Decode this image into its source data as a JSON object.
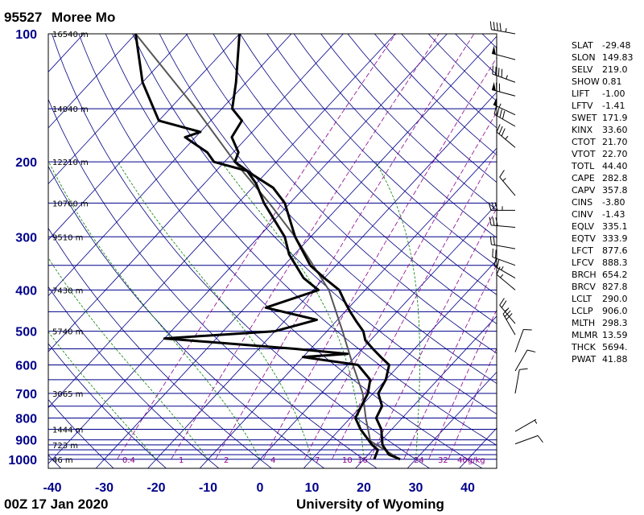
{
  "header": {
    "station_id": "95527",
    "station_name": "Moree Mo"
  },
  "footer": {
    "time": "00Z 17 Jan 2020",
    "credit": "University of Wyoming"
  },
  "colors": {
    "axis_label": "#00008b",
    "isotherm": "#00008b",
    "dry_adiabat": "#000080",
    "moist_adiabat": "#008000",
    "mixing_ratio": "#8b008b",
    "profile": "#000000",
    "parcel": "#555555"
  },
  "chart_data": {
    "type": "skew-t",
    "x_axis": {
      "label": "",
      "ticks": [
        -40,
        -30,
        -20,
        -10,
        0,
        10,
        20,
        30,
        40
      ],
      "range": [
        -40,
        45
      ]
    },
    "y_axis": {
      "label": "",
      "ticks": [
        100,
        200,
        300,
        400,
        500,
        600,
        700,
        800,
        900,
        1000
      ],
      "scale": "log",
      "range": [
        1050,
        100
      ]
    },
    "heights": [
      {
        "p": 100,
        "label": "16540 m"
      },
      {
        "p": 150,
        "label": "14040 m"
      },
      {
        "p": 200,
        "label": "12210 m"
      },
      {
        "p": 250,
        "label": "10760 m"
      },
      {
        "p": 300,
        "label": "9510 m"
      },
      {
        "p": 400,
        "label": "7430 m"
      },
      {
        "p": 500,
        "label": "5740 m"
      },
      {
        "p": 700,
        "label": "3065 m"
      },
      {
        "p": 850,
        "label": "1444 m"
      },
      {
        "p": 925,
        "label": "723 m"
      },
      {
        "p": 1000,
        "label": "46 m"
      }
    ],
    "mixing_ratio_labels": [
      "0.4",
      "1",
      "2",
      "4",
      "7",
      "10",
      "16",
      "24",
      "32",
      "40g/kg"
    ],
    "temperature": [
      {
        "p": 1000,
        "t": 27
      },
      {
        "p": 975,
        "t": 24
      },
      {
        "p": 925,
        "t": 21
      },
      {
        "p": 850,
        "t": 18
      },
      {
        "p": 800,
        "t": 15
      },
      {
        "p": 750,
        "t": 14
      },
      {
        "p": 700,
        "t": 11
      },
      {
        "p": 650,
        "t": 10
      },
      {
        "p": 600,
        "t": 8
      },
      {
        "p": 575,
        "t": 5
      },
      {
        "p": 550,
        "t": 2
      },
      {
        "p": 525,
        "t": -1
      },
      {
        "p": 500,
        "t": -3
      },
      {
        "p": 475,
        "t": -6
      },
      {
        "p": 450,
        "t": -9
      },
      {
        "p": 425,
        "t": -12
      },
      {
        "p": 400,
        "t": -15
      },
      {
        "p": 375,
        "t": -20
      },
      {
        "p": 350,
        "t": -25
      },
      {
        "p": 300,
        "t": -33
      },
      {
        "p": 250,
        "t": -41
      },
      {
        "p": 230,
        "t": -46
      },
      {
        "p": 215,
        "t": -52
      },
      {
        "p": 200,
        "t": -58
      },
      {
        "p": 190,
        "t": -59
      },
      {
        "p": 175,
        "t": -63
      },
      {
        "p": 160,
        "t": -64
      },
      {
        "p": 150,
        "t": -68
      },
      {
        "p": 130,
        "t": -72
      },
      {
        "p": 100,
        "t": -80
      }
    ],
    "dewpoint": [
      {
        "p": 1000,
        "t": 22
      },
      {
        "p": 950,
        "t": 21
      },
      {
        "p": 925,
        "t": 19
      },
      {
        "p": 850,
        "t": 14
      },
      {
        "p": 800,
        "t": 11
      },
      {
        "p": 750,
        "t": 10
      },
      {
        "p": 700,
        "t": 9
      },
      {
        "p": 650,
        "t": 7
      },
      {
        "p": 600,
        "t": 2
      },
      {
        "p": 575,
        "t": -10
      },
      {
        "p": 565,
        "t": -2
      },
      {
        "p": 550,
        "t": -13
      },
      {
        "p": 520,
        "t": -40
      },
      {
        "p": 500,
        "t": -20
      },
      {
        "p": 470,
        "t": -14
      },
      {
        "p": 440,
        "t": -26
      },
      {
        "p": 400,
        "t": -19
      },
      {
        "p": 375,
        "t": -24
      },
      {
        "p": 330,
        "t": -31
      },
      {
        "p": 300,
        "t": -35
      },
      {
        "p": 250,
        "t": -45
      },
      {
        "p": 225,
        "t": -50
      },
      {
        "p": 210,
        "t": -54
      },
      {
        "p": 200,
        "t": -62
      },
      {
        "p": 190,
        "t": -65
      },
      {
        "p": 175,
        "t": -72
      },
      {
        "p": 170,
        "t": -70
      },
      {
        "p": 160,
        "t": -80
      },
      {
        "p": 130,
        "t": -90
      },
      {
        "p": 100,
        "t": -100
      }
    ],
    "parcel": [
      {
        "p": 1000,
        "t": 27
      },
      {
        "p": 906,
        "t": 18
      },
      {
        "p": 800,
        "t": 13
      },
      {
        "p": 700,
        "t": 8
      },
      {
        "p": 600,
        "t": 1
      },
      {
        "p": 500,
        "t": -7
      },
      {
        "p": 400,
        "t": -17
      },
      {
        "p": 300,
        "t": -33
      },
      {
        "p": 250,
        "t": -44
      },
      {
        "p": 200,
        "t": -58
      },
      {
        "p": 150,
        "t": -75
      },
      {
        "p": 100,
        "t": -100
      }
    ],
    "winds": [
      {
        "p": 100,
        "dir": 280,
        "spd": 45
      },
      {
        "p": 115,
        "dir": 285,
        "spd": 60
      },
      {
        "p": 130,
        "dir": 290,
        "spd": 45
      },
      {
        "p": 140,
        "dir": 285,
        "spd": 70
      },
      {
        "p": 155,
        "dir": 295,
        "spd": 55
      },
      {
        "p": 165,
        "dir": 300,
        "spd": 40
      },
      {
        "p": 185,
        "dir": 310,
        "spd": 35
      },
      {
        "p": 240,
        "dir": 320,
        "spd": 15
      },
      {
        "p": 260,
        "dir": 270,
        "spd": 35
      },
      {
        "p": 285,
        "dir": 275,
        "spd": 30
      },
      {
        "p": 320,
        "dir": 280,
        "spd": 20
      },
      {
        "p": 350,
        "dir": 290,
        "spd": 20
      },
      {
        "p": 375,
        "dir": 300,
        "spd": 25
      },
      {
        "p": 400,
        "dir": 310,
        "spd": 15
      },
      {
        "p": 480,
        "dir": 320,
        "spd": 25
      },
      {
        "p": 510,
        "dir": 330,
        "spd": 30
      },
      {
        "p": 560,
        "dir": 20,
        "spd": 10
      },
      {
        "p": 620,
        "dir": 30,
        "spd": 10
      },
      {
        "p": 700,
        "dir": 10,
        "spd": 10
      },
      {
        "p": 860,
        "dir": 60,
        "spd": 5
      },
      {
        "p": 920,
        "dir": 70,
        "spd": 10
      }
    ]
  },
  "indices": [
    {
      "key": "SLAT",
      "value": "-29.48"
    },
    {
      "key": "SLON",
      "value": "149.83"
    },
    {
      "key": "SELV",
      "value": "219.0"
    },
    {
      "key": "SHOW",
      "value": "0.81"
    },
    {
      "key": "LIFT",
      "value": "-1.00"
    },
    {
      "key": "LFTV",
      "value": "-1.41"
    },
    {
      "key": "SWET",
      "value": "171.9"
    },
    {
      "key": "KINX",
      "value": "33.60"
    },
    {
      "key": "CTOT",
      "value": "21.70"
    },
    {
      "key": "VTOT",
      "value": "22.70"
    },
    {
      "key": "TOTL",
      "value": "44.40"
    },
    {
      "key": "CAPE",
      "value": "282.8"
    },
    {
      "key": "CAPV",
      "value": "357.8"
    },
    {
      "key": "CINS",
      "value": "-3.80"
    },
    {
      "key": "CINV",
      "value": "-1.43"
    },
    {
      "key": "EQLV",
      "value": "335.1"
    },
    {
      "key": "EQTV",
      "value": "333.9"
    },
    {
      "key": "LFCT",
      "value": "877.6"
    },
    {
      "key": "LFCV",
      "value": "888.3"
    },
    {
      "key": "BRCH",
      "value": "654.2"
    },
    {
      "key": "BRCV",
      "value": "827.8"
    },
    {
      "key": "LCLT",
      "value": "290.0"
    },
    {
      "key": "LCLP",
      "value": "906.0"
    },
    {
      "key": "MLTH",
      "value": "298.3"
    },
    {
      "key": "MLMR",
      "value": "13.59"
    },
    {
      "key": "THCK",
      "value": "5694."
    },
    {
      "key": "PWAT",
      "value": "41.88"
    }
  ]
}
